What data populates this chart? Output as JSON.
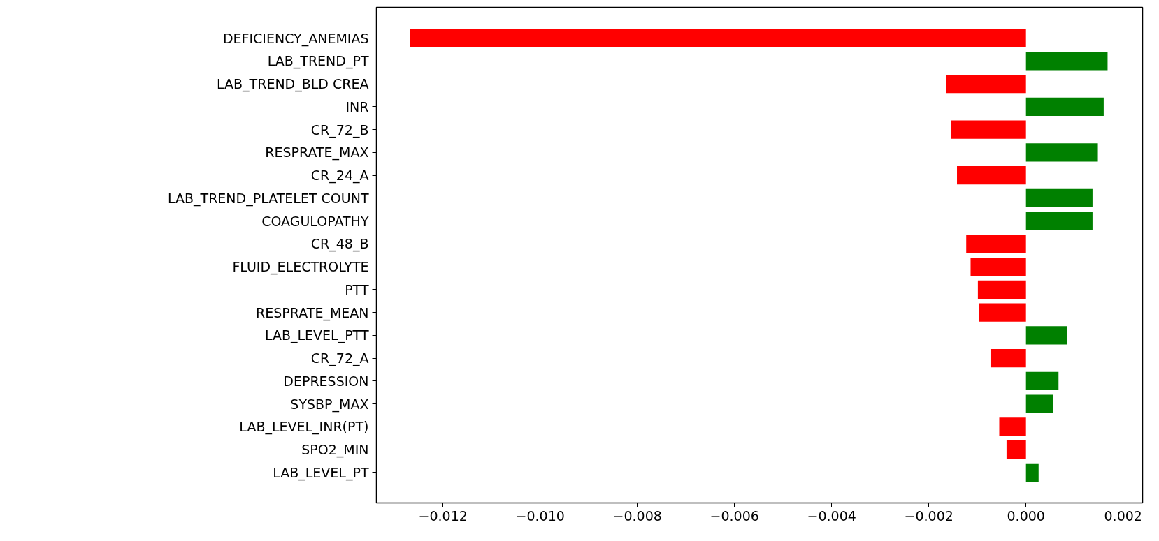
{
  "chart_data": {
    "type": "bar",
    "orientation": "horizontal",
    "categories": [
      "DEFICIENCY_ANEMIAS",
      "LAB_TREND_PT",
      "LAB_TREND_BLD CREA",
      "INR",
      "CR_72_B",
      "RESPRATE_MAX",
      "CR_24_A",
      "LAB_TREND_PLATELET COUNT",
      "COAGULOPATHY",
      "CR_48_B",
      "FLUID_ELECTROLYTE",
      "PTT",
      "RESPRATE_MEAN",
      "LAB_LEVEL_PTT",
      "CR_72_A",
      "DEPRESSION",
      "SYSBP_MAX",
      "LAB_LEVEL_INR(PT)",
      "SPO2_MIN",
      "LAB_LEVEL_PT"
    ],
    "values": [
      -0.01268,
      0.00168,
      -0.00164,
      0.0016,
      -0.00154,
      0.00148,
      -0.00142,
      0.00137,
      0.00137,
      -0.00123,
      -0.00114,
      -0.00099,
      -0.00096,
      0.00085,
      -0.00073,
      0.00067,
      0.00056,
      -0.00055,
      -0.0004,
      0.00026
    ],
    "colors": [
      "#ff0000",
      "#008000",
      "#ff0000",
      "#008000",
      "#ff0000",
      "#008000",
      "#ff0000",
      "#008000",
      "#008000",
      "#ff0000",
      "#ff0000",
      "#ff0000",
      "#ff0000",
      "#008000",
      "#ff0000",
      "#008000",
      "#008000",
      "#ff0000",
      "#ff0000",
      "#008000"
    ],
    "xlim": [
      -0.01337,
      0.0024
    ],
    "xticks": [
      {
        "value": -0.012,
        "label": "−0.012"
      },
      {
        "value": -0.01,
        "label": "−0.010"
      },
      {
        "value": -0.008,
        "label": "−0.008"
      },
      {
        "value": -0.006,
        "label": "−0.006"
      },
      {
        "value": -0.004,
        "label": "−0.004"
      },
      {
        "value": -0.002,
        "label": "−0.002"
      },
      {
        "value": 0,
        "label": "0.000"
      },
      {
        "value": 0.002,
        "label": "0.002"
      }
    ],
    "grid": false
  }
}
